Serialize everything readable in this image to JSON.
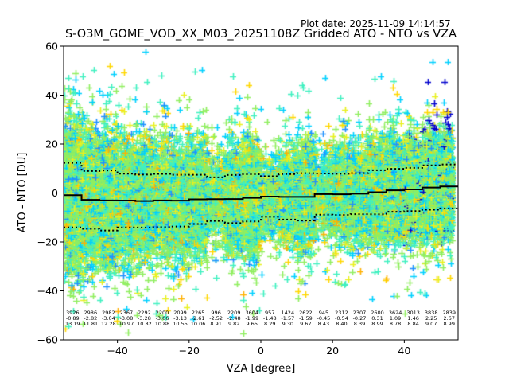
{
  "header": {
    "plot_date_label": "Plot date: 2025-11-09 14:14:57",
    "title": "S-O3M_GOME_VOD_XX_M03_20251108Z Gridded ATO - NTO vs VZA"
  },
  "chart_data": {
    "type": "scatter",
    "title": "S-O3M_GOME_VOD_XX_M03_20251108Z Gridded ATO - NTO vs VZA",
    "xlabel": "VZA [degree]",
    "ylabel": "ATO - NTO [DU]",
    "xlim": [
      -55,
      55
    ],
    "ylim": [
      -60,
      60
    ],
    "xticks": [
      -40,
      -20,
      0,
      20,
      40
    ],
    "xtick_labels": [
      "−40",
      "−20",
      "0",
      "20",
      "40"
    ],
    "yticks": [
      -60,
      -40,
      -20,
      0,
      20,
      40,
      60
    ],
    "ytick_labels": [
      "−60",
      "−40",
      "−20",
      "0",
      "20",
      "40",
      "60"
    ],
    "grid": false,
    "marker": "+",
    "colormap_colors": [
      "#0000cd",
      "#1e90ff",
      "#00d0ff",
      "#40f0c0",
      "#90ee60",
      "#e8f020",
      "#ffd700",
      "#ffb000"
    ],
    "reference_line_y": 0,
    "bins": {
      "edges": [
        -55,
        -50,
        -45,
        -40,
        -35,
        -30,
        -25,
        -20,
        -15,
        -10,
        -5,
        0,
        5,
        10,
        15,
        20,
        25,
        30,
        35,
        40,
        45,
        50,
        55
      ],
      "count": [
        3926,
        2986,
        2982,
        2367,
        2292,
        2200,
        2099,
        2265,
        996,
        2209,
        3604,
        957,
        1424,
        2622,
        945,
        2312,
        2307,
        2600,
        3624,
        3013,
        3838,
        2839
      ],
      "mean": [
        -0.89,
        -2.82,
        -3.04,
        -3.08,
        -3.28,
        -3.06,
        -3.13,
        -2.61,
        -2.52,
        -2.48,
        -1.99,
        -1.48,
        -1.57,
        -1.59,
        -0.45,
        -0.54,
        -0.27,
        0.31,
        1.09,
        1.46,
        2.25,
        2.67
      ],
      "std": [
        13.19,
        11.81,
        12.28,
        10.97,
        10.82,
        10.88,
        10.55,
        10.06,
        8.91,
        9.82,
        9.65,
        8.29,
        9.3,
        9.67,
        8.43,
        8.4,
        8.39,
        8.99,
        8.78,
        8.84,
        9.07,
        8.99
      ],
      "count_labels": [
        "3926",
        "2986",
        "2982",
        "2367",
        "2292",
        "2200",
        "2099",
        "2265",
        "996",
        "2209",
        "3604",
        "957",
        "1424",
        "2622",
        "945",
        "2312",
        "2307",
        "2600",
        "3624",
        "3013",
        "3838",
        "2839"
      ],
      "mean_labels": [
        "-0.89",
        "-2.82",
        "-3.04",
        "-3.08",
        "-3.28",
        "-3.06",
        "-3.13",
        "-2.61",
        "-2.52",
        "-2.48",
        "-1.99",
        "-1.48",
        "-1.57",
        "-1.59",
        "-0.45",
        "-0.54",
        "-0.27",
        "0.31",
        "1.09",
        "1.46",
        "2.25",
        "2.67"
      ],
      "std_labels": [
        "13.19",
        "11.81",
        "12.28",
        "10.97",
        "10.82",
        "10.88",
        "10.55",
        "10.06",
        "8.91",
        "9.82",
        "9.65",
        "8.29",
        "9.30",
        "9.67",
        "8.43",
        "8.40",
        "8.39",
        "8.99",
        "8.78",
        "8.84",
        "9.07",
        "8.99"
      ]
    }
  }
}
